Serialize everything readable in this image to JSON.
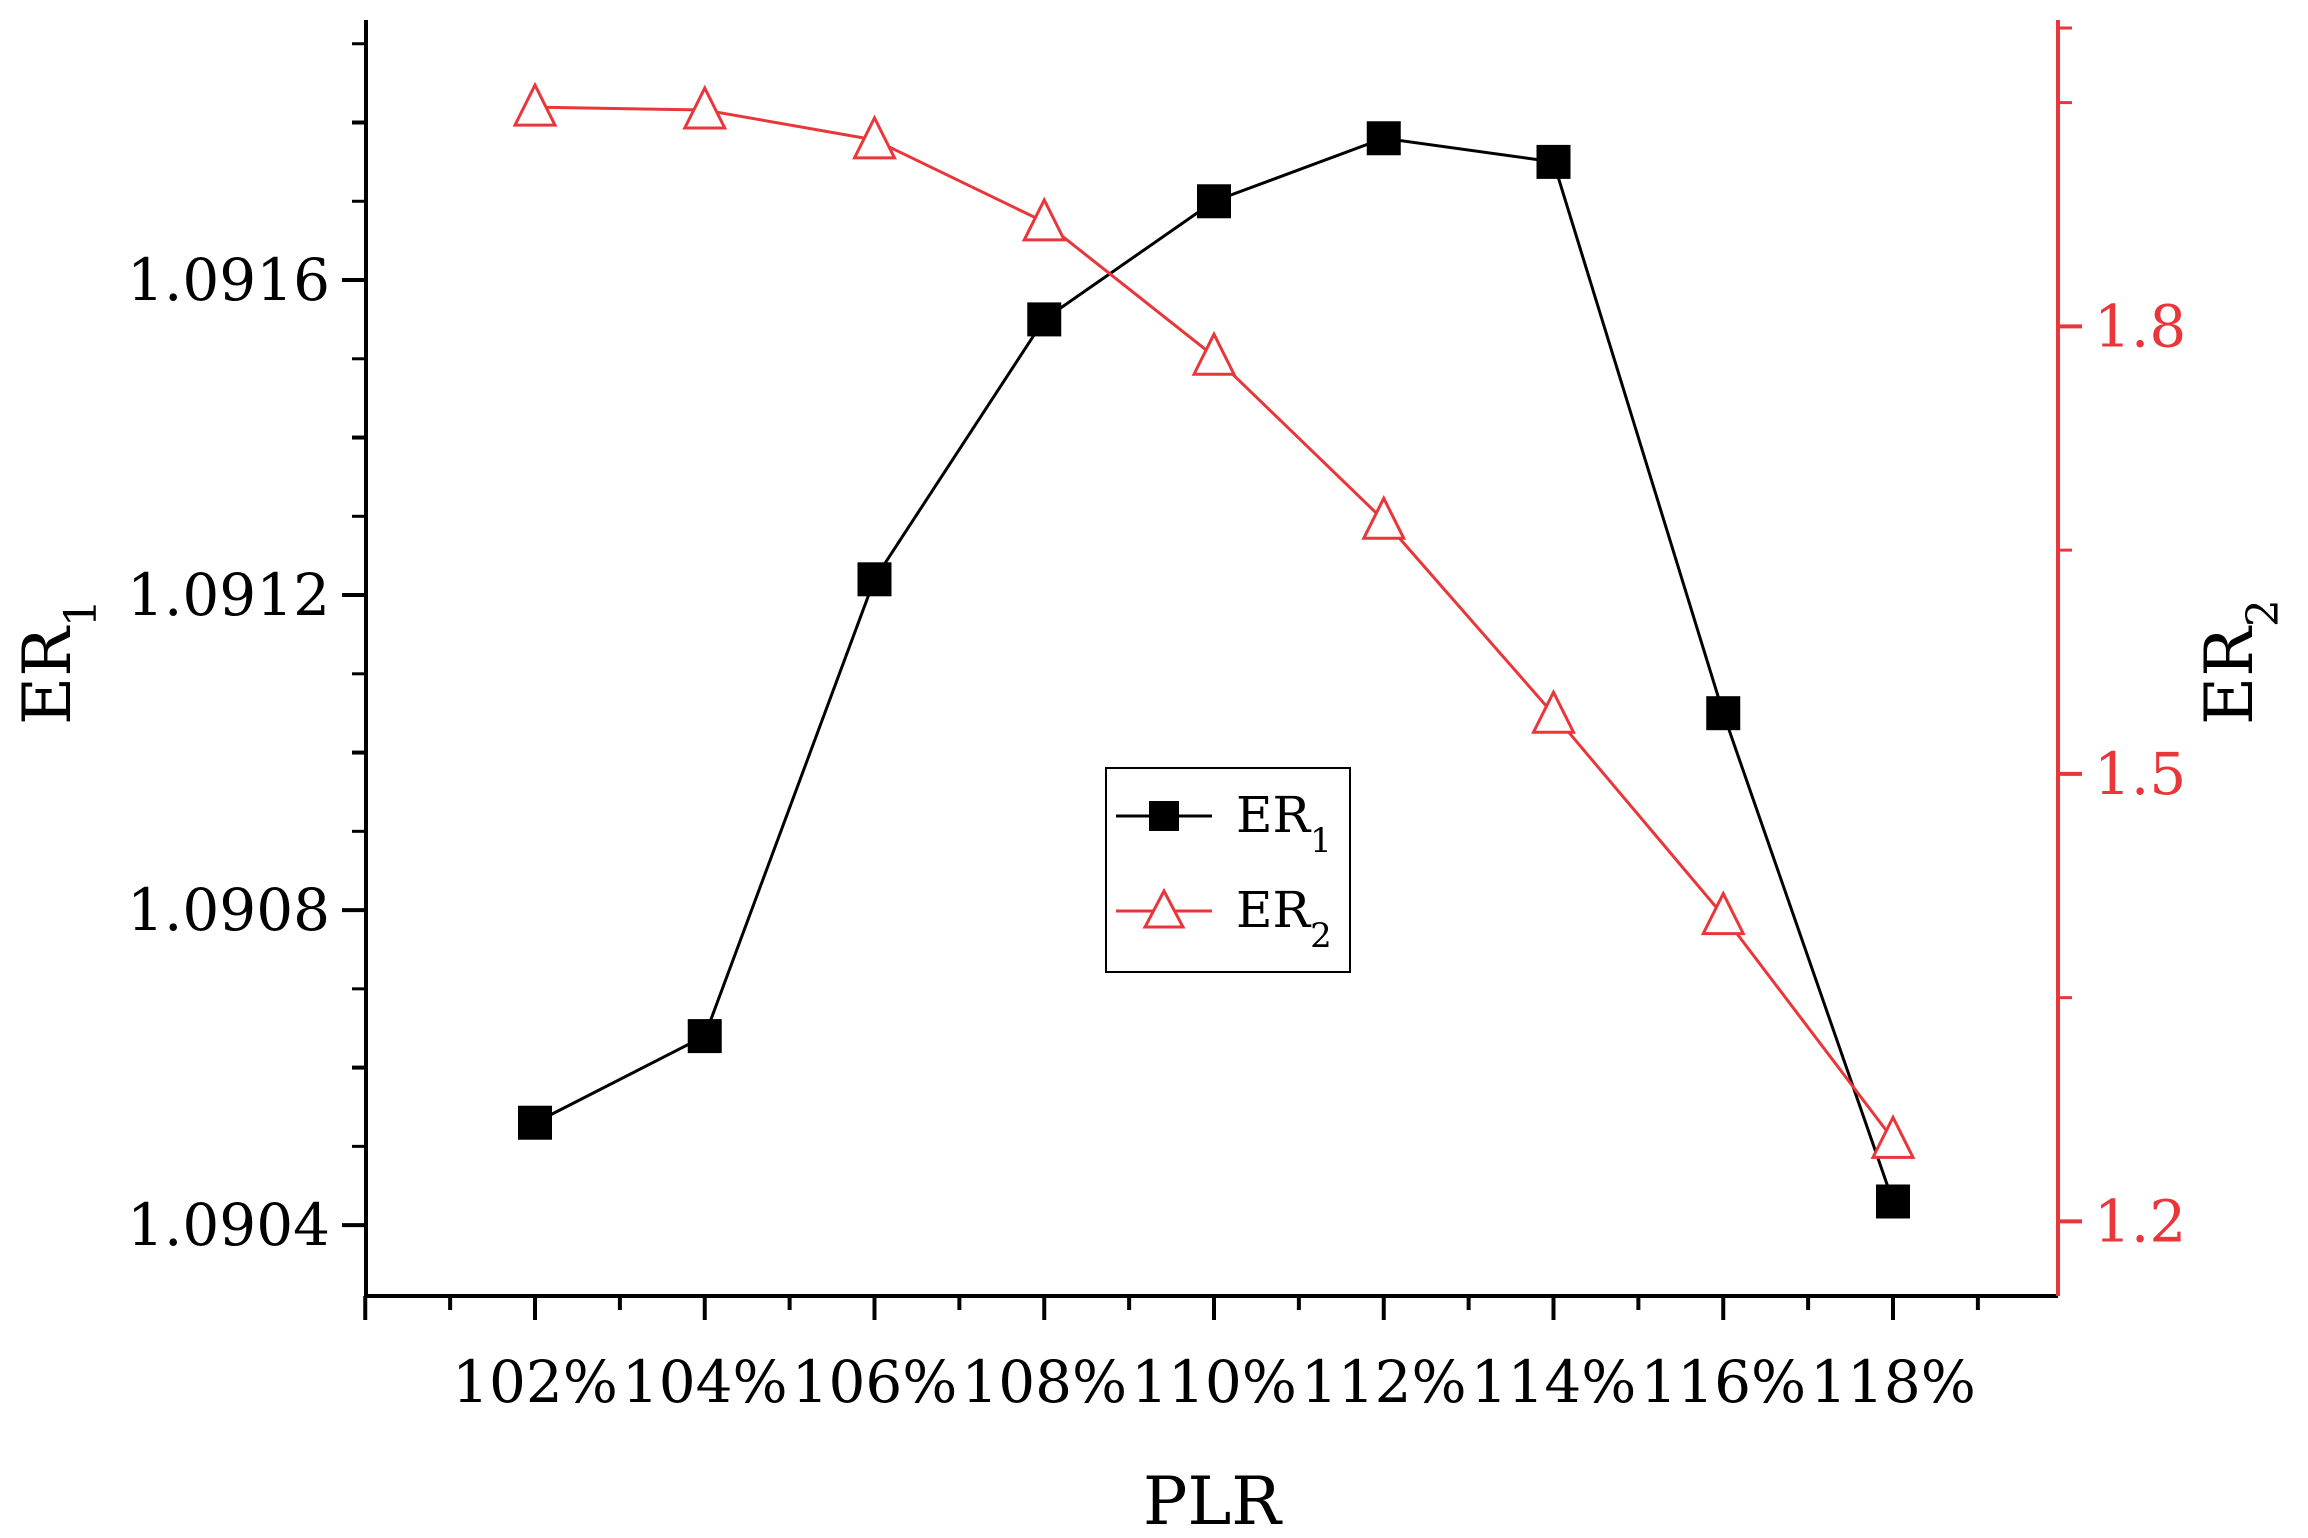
{
  "chart_data": {
    "type": "line",
    "title": "",
    "x": [
      "102%",
      "104%",
      "106%",
      "108%",
      "110%",
      "112%",
      "114%",
      "116%",
      "118%"
    ],
    "xlabel": "PLR",
    "y_left": {
      "label_main": "ER",
      "label_sub": "1",
      "ticks": [
        "1.0904",
        "1.0908",
        "1.0912",
        "1.0916"
      ],
      "tick_values": [
        1.0904,
        1.0908,
        1.0912,
        1.0916
      ],
      "range": [
        1.09031,
        1.09192
      ],
      "color": "#000000"
    },
    "y_right": {
      "label_main": "ER",
      "label_sub": "2",
      "ticks": [
        "1.2",
        "1.5",
        "1.8"
      ],
      "tick_values": [
        1.2,
        1.5,
        1.8
      ],
      "range": [
        1.15,
        2.0
      ],
      "color": "#e8363a"
    },
    "series": [
      {
        "name_main": "ER",
        "name_sub": "1",
        "axis": "left",
        "marker": "square",
        "color": "#000000",
        "values": [
          1.09053,
          1.09064,
          1.09122,
          1.09155,
          1.0917,
          1.09178,
          1.09175,
          1.09105,
          1.09043
        ]
      },
      {
        "name_main": "ER",
        "name_sub": "2",
        "axis": "right",
        "marker": "triangle-open",
        "color": "#e8363a",
        "values": [
          1.947,
          1.945,
          1.925,
          1.87,
          1.78,
          1.67,
          1.54,
          1.405,
          1.255
        ]
      }
    ],
    "legend": {
      "position": "center"
    },
    "grid": false
  }
}
